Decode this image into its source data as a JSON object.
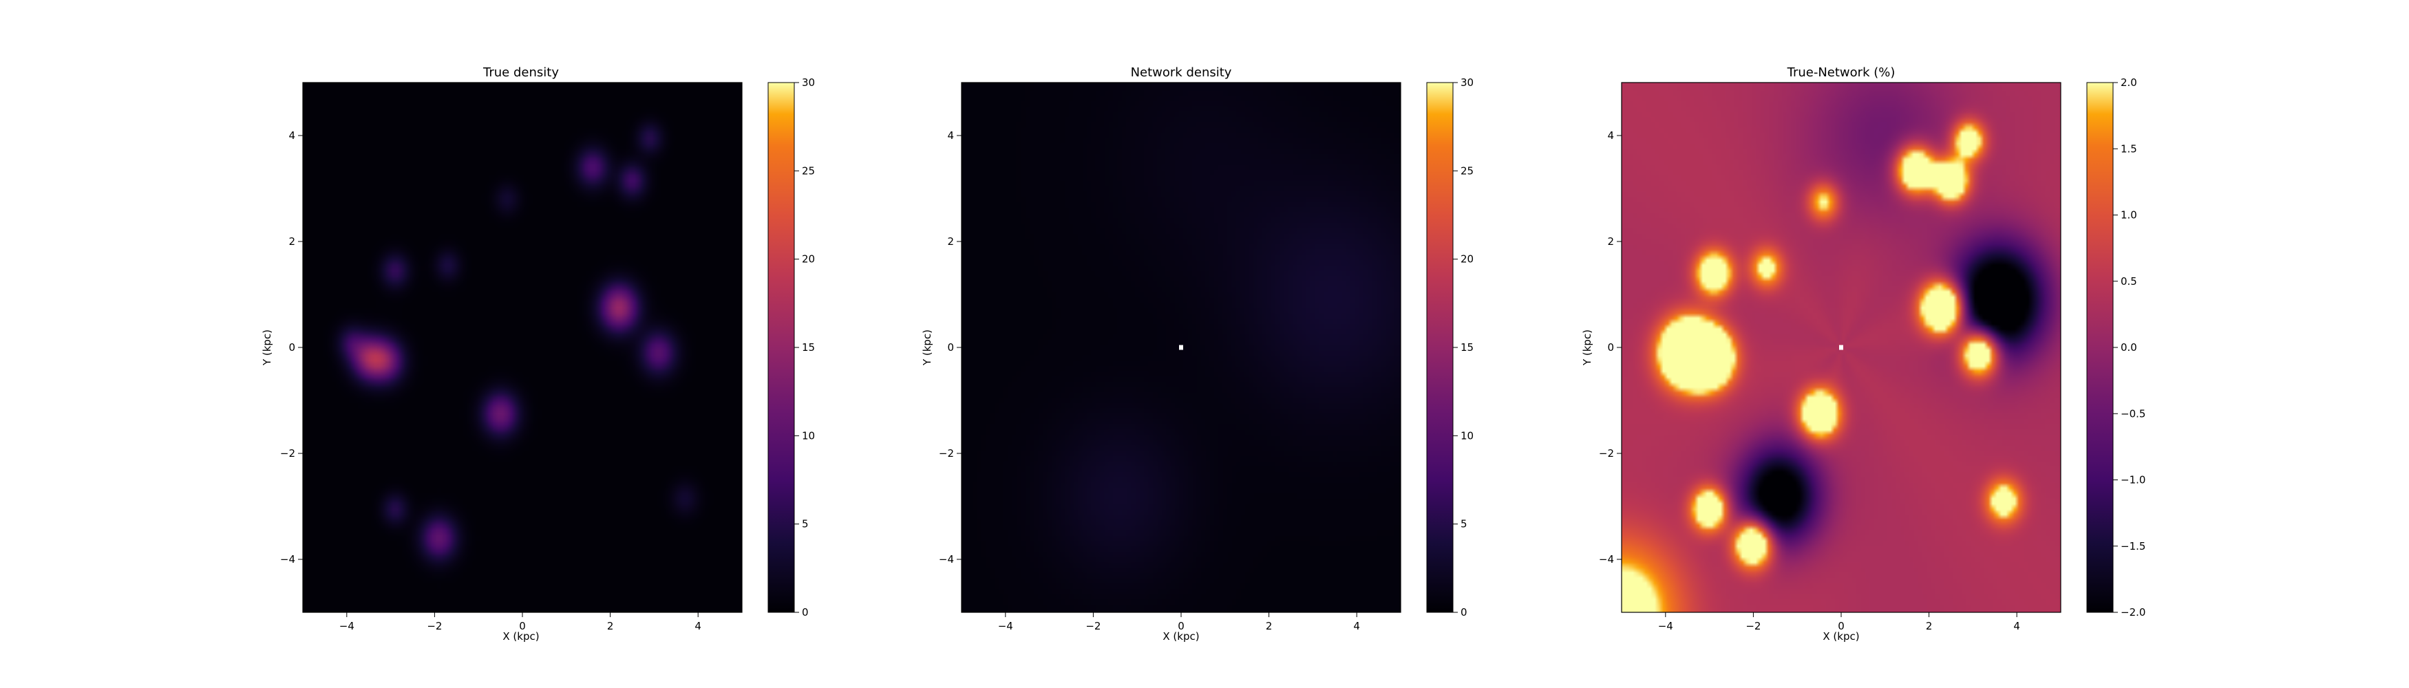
{
  "chart_data": [
    {
      "type": "heatmap",
      "title": "True density",
      "xlabel": "X (kpc)",
      "ylabel": "Y (kpc)",
      "xlim": [
        -5,
        5
      ],
      "ylim": [
        -5,
        5
      ],
      "x_ticks": [
        -4,
        -2,
        0,
        2,
        4
      ],
      "y_ticks": [
        -4,
        -2,
        0,
        2,
        4
      ],
      "colormap": "inferno",
      "colorbar": {
        "min": 0,
        "max": 30,
        "ticks": [
          0,
          5,
          10,
          15,
          20,
          25,
          30
        ]
      },
      "background": 0.3,
      "blobs": [
        {
          "x": -3.5,
          "y": -0.2,
          "value": 13,
          "sigma": 0.28
        },
        {
          "x": -3.1,
          "y": -0.25,
          "value": 11,
          "sigma": 0.28
        },
        {
          "x": -3.9,
          "y": 0.1,
          "value": 5,
          "sigma": 0.22
        },
        {
          "x": 2.2,
          "y": 0.75,
          "value": 15,
          "sigma": 0.3
        },
        {
          "x": -0.5,
          "y": -1.25,
          "value": 11,
          "sigma": 0.28
        },
        {
          "x": 3.1,
          "y": -0.1,
          "value": 9,
          "sigma": 0.28
        },
        {
          "x": -1.9,
          "y": -3.6,
          "value": 10,
          "sigma": 0.28
        },
        {
          "x": 1.6,
          "y": 3.4,
          "value": 8,
          "sigma": 0.25
        },
        {
          "x": 2.5,
          "y": 3.15,
          "value": 7,
          "sigma": 0.22
        },
        {
          "x": 2.9,
          "y": 3.95,
          "value": 5,
          "sigma": 0.2
        },
        {
          "x": -2.9,
          "y": 1.45,
          "value": 6,
          "sigma": 0.22
        },
        {
          "x": -1.7,
          "y": 1.55,
          "value": 4,
          "sigma": 0.2
        },
        {
          "x": -2.9,
          "y": -3.05,
          "value": 5,
          "sigma": 0.2
        },
        {
          "x": -0.35,
          "y": 2.8,
          "value": 3,
          "sigma": 0.2
        },
        {
          "x": 3.7,
          "y": -2.85,
          "value": 3,
          "sigma": 0.22
        }
      ]
    },
    {
      "type": "heatmap",
      "title": "Network density",
      "xlabel": "X (kpc)",
      "ylabel": "Y (kpc)",
      "xlim": [
        -5,
        5
      ],
      "ylim": [
        -5,
        5
      ],
      "x_ticks": [
        -4,
        -2,
        0,
        2,
        4
      ],
      "y_ticks": [
        -4,
        -2,
        0,
        2,
        4
      ],
      "colormap": "inferno",
      "colorbar": {
        "min": 0,
        "max": 30,
        "ticks": [
          0,
          5,
          10,
          15,
          20,
          25,
          30
        ]
      },
      "background": 0.6,
      "blobs": [
        {
          "x": 3.5,
          "y": 0.9,
          "value": 2.6,
          "sigma": 1.5
        },
        {
          "x": -1.4,
          "y": -2.8,
          "value": 2.2,
          "sigma": 1.1
        },
        {
          "x": 0.5,
          "y": 3.5,
          "value": 0.8,
          "sigma": 1.6
        }
      ],
      "marker": {
        "x": 0,
        "y": 0,
        "color": "#ffffff"
      }
    },
    {
      "type": "heatmap",
      "title": "True-Network (%)",
      "xlabel": "X (kpc)",
      "ylabel": "Y (kpc)",
      "xlim": [
        -5,
        5
      ],
      "ylim": [
        -5,
        5
      ],
      "x_ticks": [
        -4,
        -2,
        0,
        2,
        4
      ],
      "y_ticks": [
        -4,
        -2,
        0,
        2,
        4
      ],
      "colormap": "inferno",
      "colorbar": {
        "min": -2.0,
        "max": 2.0,
        "ticks": [
          -2.0,
          -1.5,
          -1.0,
          -0.5,
          0.0,
          0.5,
          1.0,
          1.5,
          2.0
        ]
      },
      "background": 0.35,
      "blobs": [
        {
          "x": -3.5,
          "y": -0.1,
          "value": 6,
          "sigma": 0.4
        },
        {
          "x": -3.0,
          "y": -0.2,
          "value": 5,
          "sigma": 0.35
        },
        {
          "x": 2.3,
          "y": 0.75,
          "value": 5,
          "sigma": 0.32
        },
        {
          "x": 3.15,
          "y": -0.1,
          "value": 4,
          "sigma": 0.3
        },
        {
          "x": -0.5,
          "y": -1.25,
          "value": 4,
          "sigma": 0.3
        },
        {
          "x": 1.7,
          "y": 3.35,
          "value": 4,
          "sigma": 0.3
        },
        {
          "x": 2.5,
          "y": 3.15,
          "value": 4,
          "sigma": 0.27
        },
        {
          "x": 2.9,
          "y": 3.9,
          "value": 3,
          "sigma": 0.25
        },
        {
          "x": -2.9,
          "y": 1.4,
          "value": 3.5,
          "sigma": 0.27
        },
        {
          "x": -1.7,
          "y": 1.5,
          "value": 2,
          "sigma": 0.25
        },
        {
          "x": -3.0,
          "y": -3.05,
          "value": 3.5,
          "sigma": 0.27
        },
        {
          "x": -2.0,
          "y": -3.7,
          "value": 4,
          "sigma": 0.3
        },
        {
          "x": -0.4,
          "y": 2.75,
          "value": 2,
          "sigma": 0.25
        },
        {
          "x": 3.7,
          "y": -2.9,
          "value": 2.5,
          "sigma": 0.27
        },
        {
          "x": 3.6,
          "y": 0.9,
          "value": -3.5,
          "sigma": 0.75
        },
        {
          "x": -1.4,
          "y": -2.8,
          "value": -3,
          "sigma": 0.65
        },
        {
          "x": -5.0,
          "y": -5.0,
          "value": 2.5,
          "sigma": 0.9
        },
        {
          "x": 1.0,
          "y": 4.0,
          "value": -0.8,
          "sigma": 1.2
        }
      ],
      "marker": {
        "x": 0,
        "y": 0,
        "color": "#ffffff"
      }
    }
  ]
}
